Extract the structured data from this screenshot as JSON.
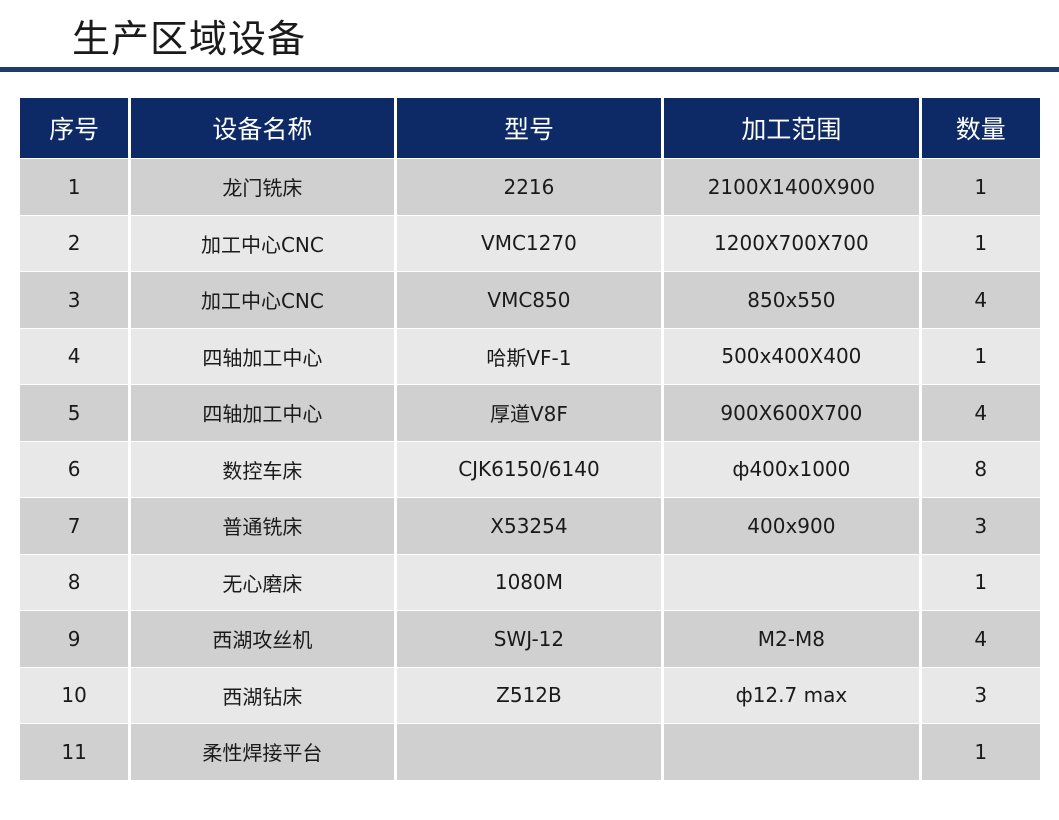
{
  "title": "生产区域设备",
  "table": {
    "headers": [
      "序号",
      "设备名称",
      "型号",
      "加工范围",
      "数量"
    ],
    "rows": [
      [
        "1",
        "龙门铣床",
        "2216",
        "2100X1400X900",
        "1"
      ],
      [
        "2",
        "加工中心CNC",
        "VMC1270",
        "1200X700X700",
        "1"
      ],
      [
        "3",
        "加工中心CNC",
        "VMC850",
        "850x550",
        "4"
      ],
      [
        "4",
        "四轴加工中心",
        "哈斯VF-1",
        "500x400X400",
        "1"
      ],
      [
        "5",
        "四轴加工中心",
        "厚道V8F",
        "900X600X700",
        "4"
      ],
      [
        "6",
        "数控车床",
        "CJK6150/6140",
        "ф400x1000",
        "8"
      ],
      [
        "7",
        "普通铣床",
        "X53254",
        "400x900",
        "3"
      ],
      [
        "8",
        "无心磨床",
        "1080M",
        "",
        "1"
      ],
      [
        "9",
        "西湖攻丝机",
        "SWJ-12",
        "M2-M8",
        "4"
      ],
      [
        "10",
        "西湖钻床",
        "Z512B",
        "ф12.7 max",
        "3"
      ],
      [
        "11",
        "柔性焊接平台",
        "",
        "",
        "1"
      ]
    ]
  },
  "colors": {
    "header_bg": "#0d2a66",
    "rule": "#1f3b66",
    "row_odd": "#d0d0d0",
    "row_even": "#e8e8e8"
  }
}
